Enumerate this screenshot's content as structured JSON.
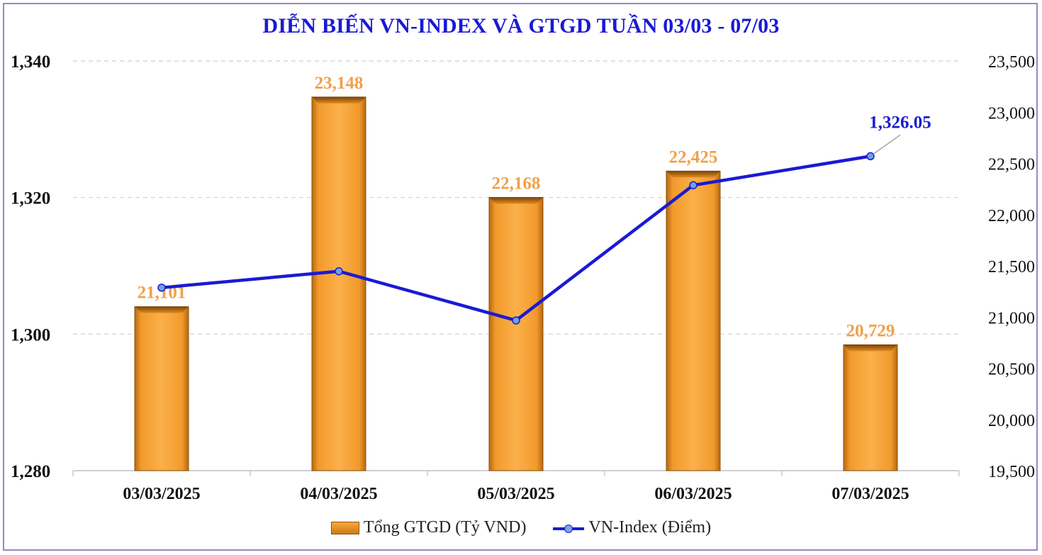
{
  "title": "DIỄN BIẾN VN-INDEX VÀ GTGD TUẦN 03/03 -  07/03",
  "colors": {
    "title": "#1a1ad4",
    "bar": "#f5a030",
    "line": "#1a1ad4",
    "bar_label": "#f0a04a",
    "frame": "#9b86c9"
  },
  "chart_data": {
    "type": "bar",
    "categories": [
      "03/03/2025",
      "04/03/2025",
      "05/03/2025",
      "06/03/2025",
      "07/03/2025"
    ],
    "series": [
      {
        "name": "Tổng GTGD (Tỷ VND)",
        "type": "bar",
        "axis": "right",
        "values": [
          21101,
          23148,
          22168,
          22425,
          20729
        ],
        "labels": [
          "21,101",
          "23,148",
          "22,168",
          "22,425",
          "20,729"
        ]
      },
      {
        "name": "VN-Index (Điểm)",
        "type": "line",
        "axis": "left",
        "values": [
          1306.8,
          1309.2,
          1302.0,
          1321.8,
          1326.05
        ],
        "last_label": "1,326.05"
      }
    ],
    "left_axis": {
      "ylim": [
        1280,
        1340
      ],
      "ticks": [
        "1,280",
        "1,300",
        "1,320",
        "1,340"
      ],
      "tick_values": [
        1280,
        1300,
        1320,
        1340
      ]
    },
    "right_axis": {
      "ylim": [
        19500,
        23500
      ],
      "ticks": [
        "19,500",
        "20,000",
        "20,500",
        "21,000",
        "21,500",
        "22,000",
        "22,500",
        "23,000",
        "23,500"
      ],
      "tick_values": [
        19500,
        20000,
        20500,
        21000,
        21500,
        22000,
        22500,
        23000,
        23500
      ]
    },
    "grid": true,
    "legend_position": "bottom"
  },
  "legend": {
    "bar_label": "Tổng GTGD (Tỷ VND)",
    "line_label": "VN-Index (Điểm)"
  }
}
